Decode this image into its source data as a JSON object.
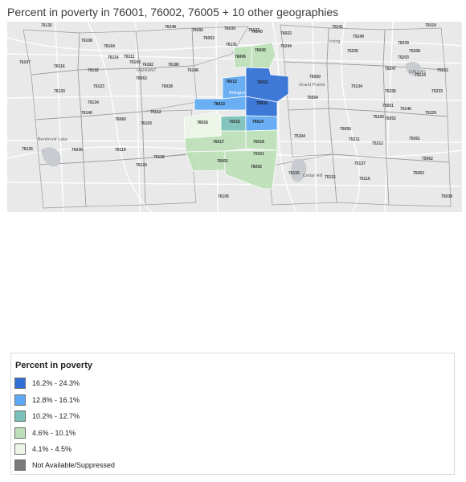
{
  "title": "Percent in poverty in 76001, 76002, 76005 + 10 other geographies",
  "map": {
    "city_labels": {
      "irving": "Irving",
      "tarrant": "TARRANT",
      "grand_prairie": "Grand Prairie",
      "dallas": "DALLAS",
      "arlington": "Arlington",
      "benbrook_lake": "Benbrook Lake",
      "cedar_hill": "Cedar Hill"
    },
    "highlighted_zips": [
      {
        "zip": "76006",
        "class": 3
      },
      {
        "zip": "76005",
        "class": 3
      },
      {
        "zip": "76012",
        "class": 1
      },
      {
        "zip": "76011",
        "class": 0
      },
      {
        "zip": "76013",
        "class": 1
      },
      {
        "zip": "76010",
        "class": 0
      },
      {
        "zip": "76016",
        "class": 4
      },
      {
        "zip": "76015",
        "class": 2
      },
      {
        "zip": "76014",
        "class": 1
      },
      {
        "zip": "76017",
        "class": 3
      },
      {
        "zip": "76018",
        "class": 3
      },
      {
        "zip": "76001",
        "class": 3
      },
      {
        "zip": "76002",
        "class": 3
      }
    ],
    "background_zips": [
      "76135",
      "76108",
      "76114",
      "76107",
      "76116",
      "76109",
      "76132",
      "76123",
      "76133",
      "76134",
      "76126",
      "76036",
      "76028",
      "76063",
      "76060",
      "76140",
      "76119",
      "76105",
      "76103",
      "76112",
      "76120",
      "76118",
      "76053",
      "76039",
      "76040",
      "76022",
      "76021",
      "76155",
      "76050",
      "75052",
      "75051",
      "75050",
      "75054",
      "75104",
      "75115",
      "75116",
      "75137",
      "75211",
      "75212",
      "75061",
      "75062",
      "75063",
      "75038",
      "75039",
      "75208",
      "75203",
      "75224",
      "75232",
      "75233",
      "75236",
      "75249",
      "75241",
      "75134",
      "75146",
      "75229",
      "75220",
      "75235",
      "75247",
      "76092",
      "76248",
      "76131",
      "76137",
      "76244",
      "76148",
      "76180",
      "76182",
      "76111",
      "76164",
      "75019"
    ]
  },
  "legend": {
    "title": "Percent in poverty",
    "items": [
      {
        "label": "16.2% - 24.3%",
        "color": "#2f6fd6"
      },
      {
        "label": "12.8% - 16.1%",
        "color": "#5ea9f3"
      },
      {
        "label": "10.2% - 12.7%",
        "color": "#79c1b9"
      },
      {
        "label": "4.6% - 10.1%",
        "color": "#bde0b9"
      },
      {
        "label": "4.1% - 4.5%",
        "color": "#ecf5e6"
      },
      {
        "label": "Not Available/Suppressed",
        "color": "#7a7a7a"
      }
    ]
  }
}
